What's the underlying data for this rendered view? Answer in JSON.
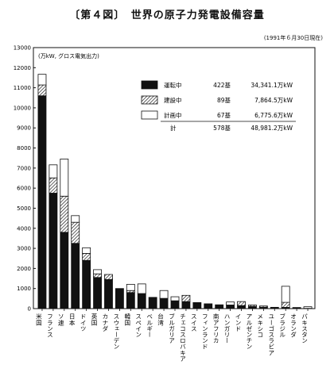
{
  "figure": {
    "title": "〔第４図〕　世界の原子力発電設備容量",
    "date_note": "(1991年６月30日現在)"
  },
  "chart_data": {
    "type": "bar",
    "stacked": true,
    "ylabel": "(万kW, グロス電気出力)",
    "ylim": [
      0,
      13000
    ],
    "yticks": [
      "0",
      "1000",
      "2000",
      "3000",
      "4000",
      "5000",
      "6000",
      "7000",
      "8000",
      "9000",
      "10000",
      "11000",
      "12000",
      "13000"
    ],
    "grid": false,
    "categories": [
      "米国",
      "フランス",
      "ソ連",
      "日本",
      "ドイツ",
      "英国",
      "カナダ",
      "スウェーデン",
      "韓国",
      "スペイン",
      "ベルギー",
      "台湾",
      "ブルガリア",
      "チェコスロバキア",
      "スイス",
      "フィンランド",
      "南アフリカ",
      "ハンガリー",
      "インド",
      "アルゼンチン",
      "メキシコ",
      "ユーゴスラビア",
      "ブラジル",
      "オランダ",
      "パキスタン"
    ],
    "series": [
      {
        "name": "運転中",
        "fill": "#111111",
        "values": [
          10600,
          5750,
          3800,
          3250,
          2400,
          1550,
          1450,
          1000,
          800,
          750,
          560,
          510,
          390,
          350,
          300,
          240,
          190,
          180,
          150,
          110,
          70,
          65,
          62,
          55,
          13
        ]
      },
      {
        "name": "建設中",
        "fill": "hatch",
        "values": [
          540,
          760,
          1800,
          1050,
          350,
          180,
          250,
          0,
          100,
          0,
          0,
          0,
          0,
          310,
          0,
          0,
          0,
          0,
          200,
          70,
          60,
          0,
          250,
          0,
          0
        ]
      },
      {
        "name": "計画中",
        "fill": "#ffffff",
        "values": [
          530,
          650,
          1850,
          330,
          280,
          210,
          0,
          0,
          310,
          480,
          0,
          390,
          200,
          0,
          0,
          0,
          0,
          150,
          0,
          0,
          0,
          0,
          800,
          0,
          80
        ]
      }
    ],
    "legend": {
      "position": "inside-top-right",
      "entries": [
        {
          "label": "運転中",
          "count": "422基",
          "capacity": "34,341.1万kW"
        },
        {
          "label": "建設中",
          "count": "89基",
          "capacity": "7,864.5万kW"
        },
        {
          "label": "計画中",
          "count": "67基",
          "capacity": "6,775.6万kW"
        }
      ],
      "total": {
        "label": "計",
        "count": "578基",
        "capacity": "48,981.2万kW"
      }
    }
  }
}
